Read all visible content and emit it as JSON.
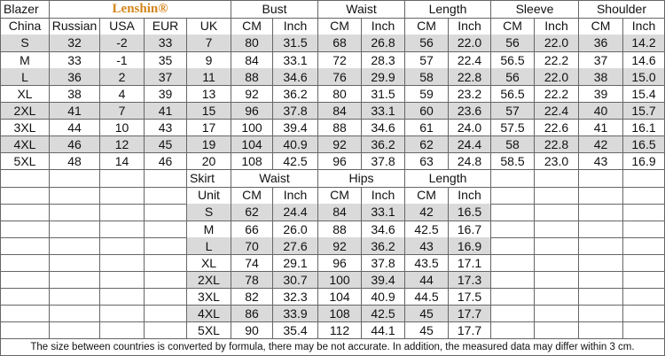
{
  "blazer": {
    "title": "Blazer",
    "brand": "Lenshin®",
    "groups": [
      "Bust",
      "Waist",
      "Length",
      "Sleeve",
      "Shoulder"
    ],
    "columns": [
      "China",
      "Russian",
      "USA",
      "EUR",
      "UK",
      "CM",
      "Inch",
      "CM",
      "Inch",
      "CM",
      "Inch",
      "CM",
      "Inch",
      "CM",
      "Inch"
    ],
    "rows": [
      [
        "S",
        "32",
        "-2",
        "33",
        "7",
        "80",
        "31.5",
        "68",
        "26.8",
        "56",
        "22.0",
        "56",
        "22.0",
        "36",
        "14.2"
      ],
      [
        "M",
        "33",
        "-1",
        "35",
        "9",
        "84",
        "33.1",
        "72",
        "28.3",
        "57",
        "22.4",
        "56.5",
        "22.2",
        "37",
        "14.6"
      ],
      [
        "L",
        "36",
        "2",
        "37",
        "11",
        "88",
        "34.6",
        "76",
        "29.9",
        "58",
        "22.8",
        "56",
        "22.0",
        "38",
        "15.0"
      ],
      [
        "XL",
        "38",
        "4",
        "39",
        "13",
        "92",
        "36.2",
        "80",
        "31.5",
        "59",
        "23.2",
        "56.5",
        "22.2",
        "39",
        "15.4"
      ],
      [
        "2XL",
        "41",
        "7",
        "41",
        "15",
        "96",
        "37.8",
        "84",
        "33.1",
        "60",
        "23.6",
        "57",
        "22.4",
        "40",
        "15.7"
      ],
      [
        "3XL",
        "44",
        "10",
        "43",
        "17",
        "100",
        "39.4",
        "88",
        "34.6",
        "61",
        "24.0",
        "57.5",
        "22.6",
        "41",
        "16.1"
      ],
      [
        "4XL",
        "46",
        "12",
        "45",
        "19",
        "104",
        "40.9",
        "92",
        "36.2",
        "62",
        "24.4",
        "58",
        "22.8",
        "42",
        "16.5"
      ],
      [
        "5XL",
        "48",
        "14",
        "46",
        "20",
        "108",
        "42.5",
        "96",
        "37.8",
        "63",
        "24.8",
        "58.5",
        "23.0",
        "43",
        "16.9"
      ]
    ]
  },
  "skirt": {
    "title": "Skirt",
    "groups": [
      "Waist",
      "Hips",
      "Length"
    ],
    "columns": [
      "Unit",
      "CM",
      "Inch",
      "CM",
      "Inch",
      "CM",
      "Inch"
    ],
    "rows": [
      [
        "S",
        "62",
        "24.4",
        "84",
        "33.1",
        "42",
        "16.5"
      ],
      [
        "M",
        "66",
        "26.0",
        "88",
        "34.6",
        "42.5",
        "16.7"
      ],
      [
        "L",
        "70",
        "27.6",
        "92",
        "36.2",
        "43",
        "16.9"
      ],
      [
        "XL",
        "74",
        "29.1",
        "96",
        "37.8",
        "43.5",
        "17.1"
      ],
      [
        "2XL",
        "78",
        "30.7",
        "100",
        "39.4",
        "44",
        "17.3"
      ],
      [
        "3XL",
        "82",
        "32.3",
        "104",
        "40.9",
        "44.5",
        "17.5"
      ],
      [
        "4XL",
        "86",
        "33.9",
        "108",
        "42.5",
        "45",
        "17.7"
      ],
      [
        "5XL",
        "90",
        "35.4",
        "112",
        "44.1",
        "45",
        "17.7"
      ]
    ]
  },
  "note": "The size between countries is converted by formula, there may be not accurate. In addition, the measured data may differ within 3 cm."
}
